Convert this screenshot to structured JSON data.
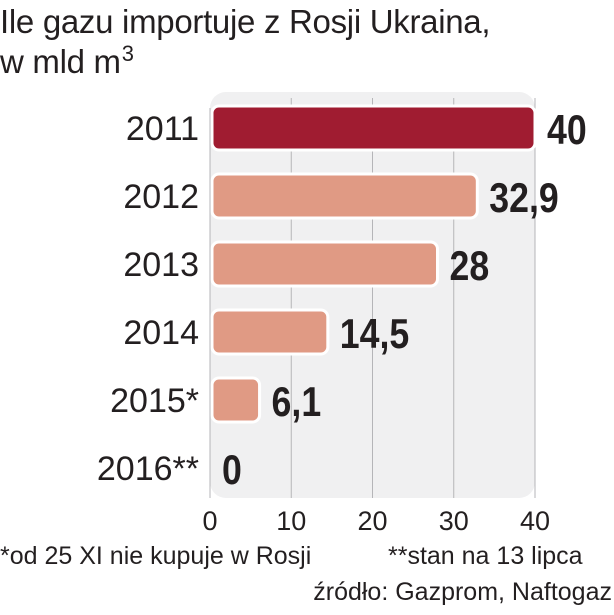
{
  "title_line1": "Ile gazu importuje z Rosji Ukraina,",
  "title_line2": "w mld m",
  "title_unit_sup": "3",
  "footnote_1": "*od 25 XI nie kupuje w Rosji",
  "footnote_2": "**stan na 13 lipca",
  "source": "źródło: Gazprom, Naftogaz",
  "colors": {
    "highlight": "#a01c31",
    "bar": "#e09a84",
    "panel": "#f0f0f1",
    "grid": "#b5b5b8",
    "text": "#231f20"
  },
  "chart_data": {
    "type": "bar",
    "orientation": "horizontal",
    "title": "Ile gazu importuje z Rosji Ukraina, w mld m3",
    "categories": [
      "2011",
      "2012",
      "2013",
      "2014",
      "2015*",
      "2016**"
    ],
    "values": [
      40,
      32.9,
      28,
      14.5,
      6.1,
      0
    ],
    "value_labels": [
      "40",
      "32,9",
      "28",
      "14,5",
      "6,1",
      "0"
    ],
    "highlight_index": 0,
    "xlim": [
      0,
      40
    ],
    "xticks": [
      0,
      10,
      20,
      30,
      40
    ],
    "xtick_labels": [
      "0",
      "10",
      "20",
      "30",
      "40"
    ],
    "grid": true
  }
}
